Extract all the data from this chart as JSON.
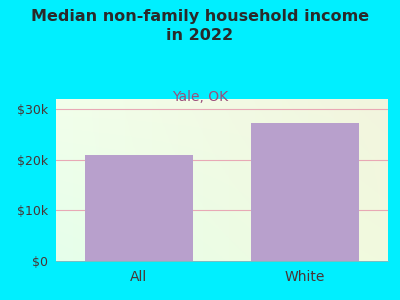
{
  "title": "Median non-family household income\nin 2022",
  "subtitle": "Yale, OK",
  "categories": [
    "All",
    "White"
  ],
  "values": [
    21000,
    27200
  ],
  "bar_color": "#b8a0cc",
  "background_outer": "#00efff",
  "title_color": "#2a2a2a",
  "subtitle_color": "#9b4f7a",
  "tick_label_color": "#4a3535",
  "ylim": [
    0,
    32000
  ],
  "yticks": [
    0,
    10000,
    20000,
    30000
  ],
  "ytick_labels": [
    "$0",
    "$10k",
    "$20k",
    "$30k"
  ],
  "grid_color": "#e8a0b0",
  "grid_alpha": 0.9,
  "title_fontsize": 11.5,
  "subtitle_fontsize": 10,
  "tick_fontsize": 9,
  "xlabel_fontsize": 10,
  "bar_width": 0.65
}
